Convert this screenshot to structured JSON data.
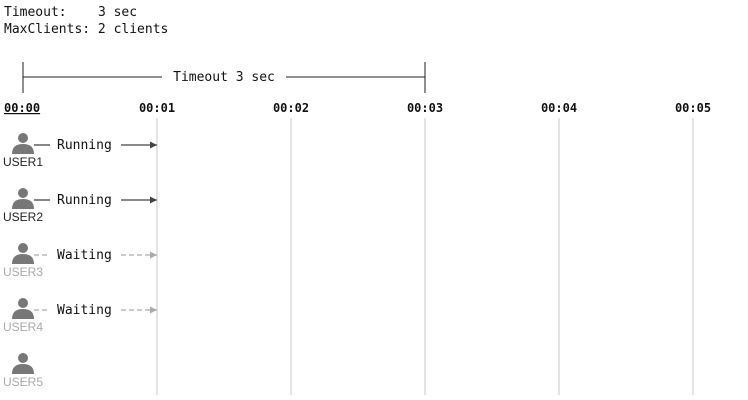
{
  "config": {
    "timeout_label": "Timeout:",
    "timeout_value": "3 sec",
    "maxclients_label": "MaxClients:",
    "maxclients_value": "2 clients"
  },
  "timeout_span": {
    "label": "Timeout 3 sec",
    "start": 0,
    "end": 3
  },
  "ticks": [
    {
      "t": 0,
      "label": "00:00",
      "current": true
    },
    {
      "t": 1,
      "label": "00:01",
      "current": false
    },
    {
      "t": 2,
      "label": "00:02",
      "current": false
    },
    {
      "t": 3,
      "label": "00:03",
      "current": false
    },
    {
      "t": 4,
      "label": "00:04",
      "current": false
    },
    {
      "t": 5,
      "label": "00:05",
      "current": false
    }
  ],
  "users": [
    {
      "name": "USER1",
      "status": "Running",
      "state": "running",
      "until": 1
    },
    {
      "name": "USER2",
      "status": "Running",
      "state": "running",
      "until": 1
    },
    {
      "name": "USER3",
      "status": "Waiting",
      "state": "waiting",
      "until": 1
    },
    {
      "name": "USER4",
      "status": "Waiting",
      "state": "waiting",
      "until": 1
    },
    {
      "name": "USER5",
      "status": "",
      "state": "idle",
      "until": 0
    }
  ],
  "colors": {
    "active": "#444444",
    "inactive": "#aaaaaa",
    "user_icon": "#777777",
    "grid": "#c8c8c8"
  }
}
